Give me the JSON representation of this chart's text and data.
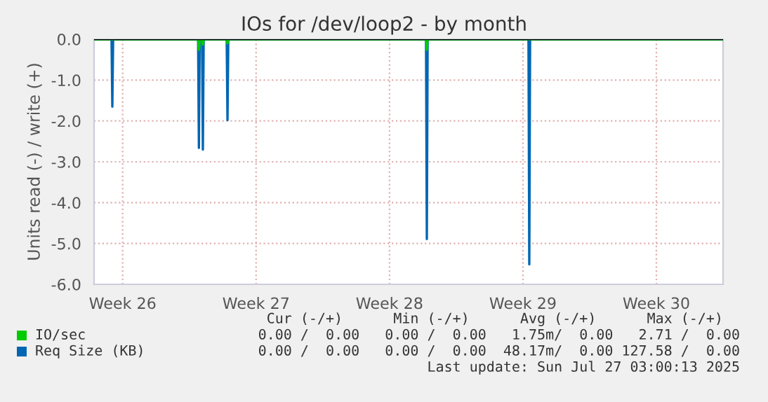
{
  "chart_data": {
    "type": "line",
    "title": "IOs for /dev/loop2 - by month",
    "ylabel": "Units read (-) / write (+)",
    "xlim": [
      "2025-06-25T00:00",
      "2025-07-28T00:00"
    ],
    "xticks": [
      {
        "value": "2025-06-26T12:00",
        "label": "Week 26"
      },
      {
        "value": "2025-07-03T12:00",
        "label": "Week 27"
      },
      {
        "value": "2025-07-10T12:00",
        "label": "Week 28"
      },
      {
        "value": "2025-07-17T12:00",
        "label": "Week 29"
      },
      {
        "value": "2025-07-24T12:00",
        "label": "Week 30"
      }
    ],
    "ylim": [
      -6.0,
      0.0
    ],
    "yticks": [
      {
        "value": -6.0,
        "label": "-6.0"
      },
      {
        "value": -5.0,
        "label": "-5.0"
      },
      {
        "value": -4.0,
        "label": "-4.0"
      },
      {
        "value": -3.0,
        "label": "-3.0"
      },
      {
        "value": -2.0,
        "label": "-2.0"
      },
      {
        "value": -1.0,
        "label": "-1.0"
      },
      {
        "value": 0.0,
        "label": "0.0"
      }
    ],
    "grid": true,
    "legend": "bottom",
    "series": [
      {
        "name": "IO/sec",
        "color": "#00cc00",
        "x": [
          "2025-06-25T00:00",
          "2025-06-30T11:00",
          "2025-06-30T12:00",
          "2025-06-30T13:00",
          "2025-06-30T16:00",
          "2025-06-30T17:00",
          "2025-06-30T18:00",
          "2025-07-01T23:00",
          "2025-07-02T00:00",
          "2025-07-02T01:00",
          "2025-07-12T10:00",
          "2025-07-12T11:00",
          "2025-07-12T12:00",
          "2025-07-28T00:00"
        ],
        "values": [
          0,
          0,
          -0.26,
          0,
          0,
          -0.13,
          0,
          0,
          -0.1,
          0,
          0,
          -0.26,
          0,
          0
        ]
      },
      {
        "name": "Req Size (KB)",
        "color": "#0066b3",
        "x": [
          "2025-06-25T00:00",
          "2025-06-25T22:00",
          "2025-06-25T23:00",
          "2025-06-26T00:00",
          "2025-06-30T11:00",
          "2025-06-30T12:00",
          "2025-06-30T13:00",
          "2025-06-30T16:00",
          "2025-06-30T17:00",
          "2025-06-30T18:00",
          "2025-07-01T23:00",
          "2025-07-02T00:00",
          "2025-07-02T01:00",
          "2025-07-12T10:00",
          "2025-07-12T11:00",
          "2025-07-12T12:00",
          "2025-07-17T19:00",
          "2025-07-17T20:00",
          "2025-07-17T21:00",
          "2025-07-28T00:00"
        ],
        "values": [
          0,
          0,
          -1.65,
          0,
          0,
          -2.66,
          0,
          0,
          -2.7,
          0,
          0,
          -1.98,
          0,
          0,
          -4.89,
          0,
          0,
          -5.51,
          0,
          0
        ]
      }
    ],
    "ref_lines": [
      {
        "axis": "y",
        "value": 0.0,
        "color": "#000000"
      }
    ],
    "annotations": [
      "    Cur (-/+)      Min (-/+)      Avg (-/+)      Max (-/+)  ",
      "   0.00 /  0.00   0.00 /  0.00   1.75m/  0.00   2.71 /  0.00",
      "   0.00 /  0.00   0.00 /  0.00  48.17m/  0.00 127.58 /  0.00",
      "Last update: Sun Jul 27 03:00:13 2025"
    ]
  }
}
